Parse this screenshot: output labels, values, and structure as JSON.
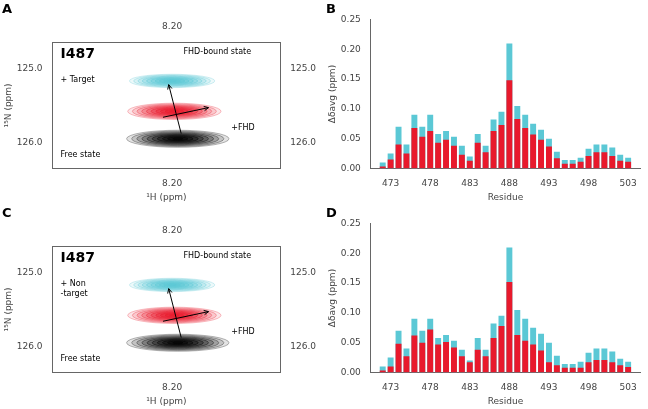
{
  "chart_data": [
    {
      "type": "contour",
      "panel_label": "A",
      "xlabel": "¹H (ppm)",
      "ylabel": "¹⁵N (ppm)",
      "xlim": [
        8.305,
        8.105
      ],
      "ylim": [
        126.35,
        124.65
      ],
      "xticks": [
        {
          "value": 8.2,
          "label": "8.20"
        }
      ],
      "yticks": [
        {
          "value": 125.0,
          "label": "125.0"
        },
        {
          "value": 126.0,
          "label": "126.0"
        }
      ],
      "grid": false,
      "levels": 10,
      "peaks": [
        {
          "x": 8.195,
          "y": 125.95,
          "width": 0.09,
          "height": 0.23,
          "color": "black"
        },
        {
          "x": 8.2,
          "y": 125.17,
          "width": 0.075,
          "height": 0.18,
          "color": "#5BC8D5"
        },
        {
          "x": 8.198,
          "y": 125.58,
          "width": 0.082,
          "height": 0.22,
          "color": "#E8192C"
        }
      ],
      "annotations": [
        {
          "text": "I487",
          "x": 8.298,
          "y": 124.72
        },
        {
          "text": "+ Target",
          "x": 8.298,
          "y": 125.1
        },
        {
          "text": "FHD-bound state",
          "x": 8.19,
          "y": 124.72
        },
        {
          "text": "Free state",
          "x": 8.298,
          "y": 126.12
        },
        {
          "text": "+FHD",
          "x": 8.148,
          "y": 125.75
        }
      ],
      "arrows": [
        {
          "from": [
            8.192,
            125.88
          ],
          "to": [
            8.203,
            125.22
          ]
        },
        {
          "from": [
            8.208,
            125.66
          ],
          "to": [
            8.168,
            125.53
          ]
        }
      ]
    },
    {
      "type": "bar",
      "panel_label": "B",
      "xlabel": "Residue",
      "ylabel": "Δδavg (ppm)",
      "x": [
        472,
        473,
        474,
        475,
        476,
        477,
        478,
        479,
        480,
        481,
        482,
        483,
        484,
        485,
        486,
        487,
        488,
        489,
        490,
        491,
        492,
        493,
        494,
        495,
        496,
        497,
        498,
        499,
        500,
        501,
        502,
        503
      ],
      "series": [
        {
          "color": "#5BC8D5",
          "values": [
            0.01,
            0.025,
            0.07,
            0.04,
            0.09,
            0.07,
            0.09,
            0.058,
            0.063,
            0.053,
            0.038,
            0.02,
            0.058,
            0.038,
            0.082,
            0.095,
            0.21,
            0.105,
            0.09,
            0.075,
            0.065,
            0.05,
            0.028,
            0.014,
            0.014,
            0.018,
            0.033,
            0.04,
            0.04,
            0.035,
            0.023,
            0.018
          ]
        },
        {
          "color": "#E8192C",
          "values": [
            0.003,
            0.015,
            0.04,
            0.025,
            0.068,
            0.053,
            0.063,
            0.043,
            0.048,
            0.038,
            0.023,
            0.013,
            0.043,
            0.027,
            0.063,
            0.073,
            0.148,
            0.083,
            0.068,
            0.057,
            0.048,
            0.037,
            0.017,
            0.008,
            0.008,
            0.011,
            0.021,
            0.027,
            0.027,
            0.021,
            0.013,
            0.011
          ]
        }
      ],
      "xlim": [
        470.5,
        504.5
      ],
      "xticks": [
        473,
        478,
        483,
        488,
        493,
        498,
        503
      ],
      "ylim": [
        0.0,
        0.25
      ],
      "yticks": [
        {
          "value": 0.0,
          "label": "0.00"
        },
        {
          "value": 0.05,
          "label": "0.05"
        },
        {
          "value": 0.1,
          "label": "0.10"
        },
        {
          "value": 0.15,
          "label": "0.15"
        },
        {
          "value": 0.2,
          "label": "0.20"
        },
        {
          "value": 0.25,
          "label": "0.25"
        }
      ],
      "grid": false
    },
    {
      "type": "contour",
      "panel_label": "C",
      "xlabel": "¹H (ppm)",
      "ylabel": "¹⁵N (ppm)",
      "xlim": [
        8.305,
        8.105
      ],
      "ylim": [
        126.35,
        124.65
      ],
      "xticks": [
        {
          "value": 8.2,
          "label": "8.20"
        }
      ],
      "yticks": [
        {
          "value": 125.0,
          "label": "125.0"
        },
        {
          "value": 126.0,
          "label": "126.0"
        }
      ],
      "grid": false,
      "levels": 10,
      "peaks": [
        {
          "x": 8.195,
          "y": 125.95,
          "width": 0.09,
          "height": 0.23,
          "color": "black"
        },
        {
          "x": 8.2,
          "y": 125.17,
          "width": 0.075,
          "height": 0.18,
          "color": "#5BC8D5"
        },
        {
          "x": 8.198,
          "y": 125.58,
          "width": 0.082,
          "height": 0.22,
          "color": "#E8192C"
        }
      ],
      "annotations": [
        {
          "text": "I487",
          "x": 8.298,
          "y": 124.72
        },
        {
          "text": "+ Non\n-target",
          "x": 8.298,
          "y": 125.1
        },
        {
          "text": "FHD-bound state",
          "x": 8.19,
          "y": 124.72
        },
        {
          "text": "Free state",
          "x": 8.298,
          "y": 126.12
        },
        {
          "text": "+FHD",
          "x": 8.148,
          "y": 125.75
        }
      ],
      "arrows": [
        {
          "from": [
            8.192,
            125.88
          ],
          "to": [
            8.203,
            125.22
          ]
        },
        {
          "from": [
            8.208,
            125.66
          ],
          "to": [
            8.168,
            125.53
          ]
        }
      ]
    },
    {
      "type": "bar",
      "panel_label": "D",
      "xlabel": "Residue",
      "ylabel": "Δδavg (ppm)",
      "x": [
        472,
        473,
        474,
        475,
        476,
        477,
        478,
        479,
        480,
        481,
        482,
        483,
        484,
        485,
        486,
        487,
        488,
        489,
        490,
        491,
        492,
        493,
        494,
        495,
        496,
        497,
        498,
        499,
        500,
        501,
        502,
        503
      ],
      "series": [
        {
          "color": "#5BC8D5",
          "values": [
            0.01,
            0.025,
            0.07,
            0.04,
            0.09,
            0.07,
            0.09,
            0.058,
            0.063,
            0.053,
            0.038,
            0.02,
            0.058,
            0.038,
            0.082,
            0.095,
            0.21,
            0.105,
            0.09,
            0.075,
            0.065,
            0.05,
            0.028,
            0.014,
            0.014,
            0.018,
            0.033,
            0.04,
            0.04,
            0.035,
            0.023,
            0.018
          ]
        },
        {
          "color": "#E8192C",
          "values": [
            0.003,
            0.01,
            0.048,
            0.027,
            0.062,
            0.05,
            0.072,
            0.047,
            0.051,
            0.042,
            0.027,
            0.017,
            0.038,
            0.027,
            0.058,
            0.078,
            0.152,
            0.063,
            0.053,
            0.047,
            0.037,
            0.017,
            0.012,
            0.008,
            0.008,
            0.008,
            0.017,
            0.021,
            0.021,
            0.017,
            0.012,
            0.009
          ]
        }
      ],
      "xlim": [
        470.5,
        504.5
      ],
      "xticks": [
        473,
        478,
        483,
        488,
        493,
        498,
        503
      ],
      "ylim": [
        0.0,
        0.25
      ],
      "yticks": [
        {
          "value": 0.0,
          "label": "0.00"
        },
        {
          "value": 0.05,
          "label": "0.05"
        },
        {
          "value": 0.1,
          "label": "0.10"
        },
        {
          "value": 0.15,
          "label": "0.15"
        },
        {
          "value": 0.2,
          "label": "0.20"
        },
        {
          "value": 0.25,
          "label": "0.25"
        }
      ],
      "grid": false
    }
  ]
}
